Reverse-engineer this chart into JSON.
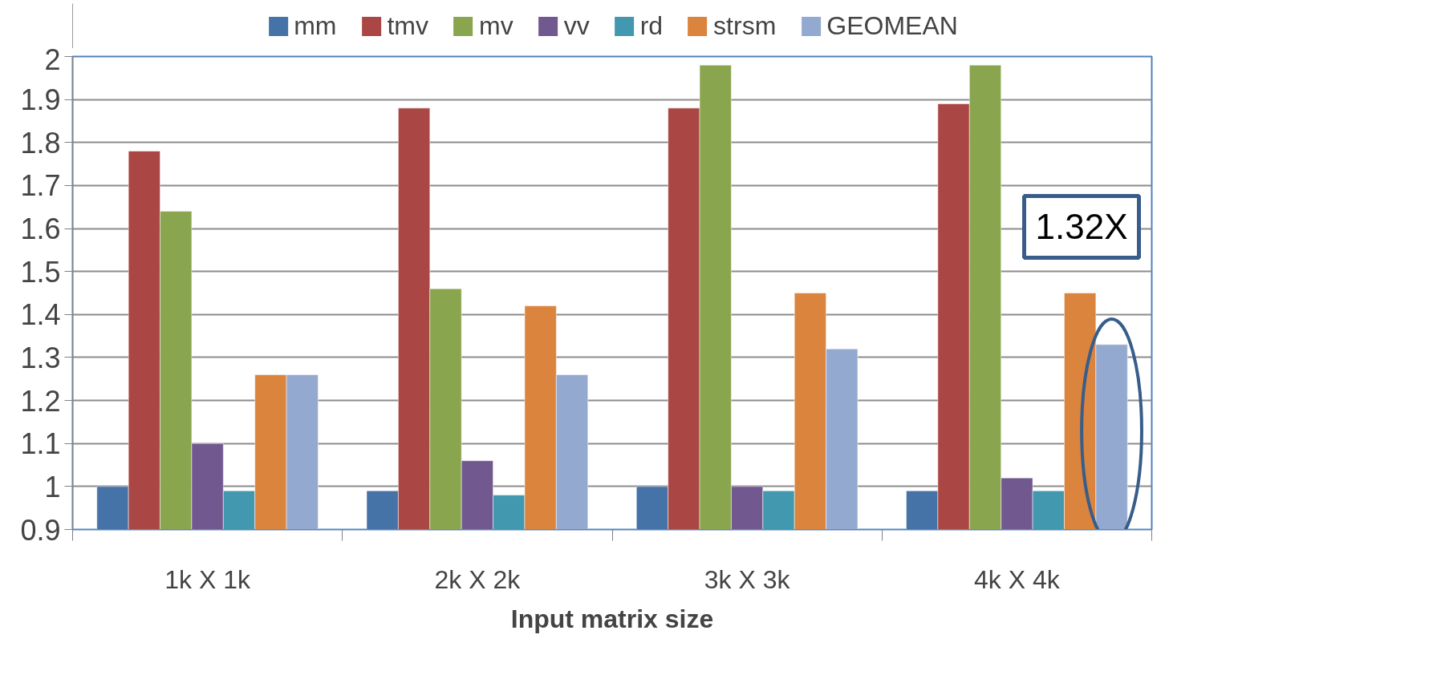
{
  "chart_data": {
    "type": "bar",
    "xlabel": "Input matrix size",
    "categories": [
      "1k X 1k",
      "2k X 2k",
      "3k X 3k",
      "4k X 4k"
    ],
    "series": [
      {
        "name": "mm",
        "color": "#4572a7",
        "values": [
          1.0,
          0.99,
          1.0,
          0.99
        ]
      },
      {
        "name": "tmv",
        "color": "#aa4643",
        "values": [
          1.78,
          1.88,
          1.88,
          1.89
        ]
      },
      {
        "name": "mv",
        "color": "#89a54e",
        "values": [
          1.64,
          1.46,
          1.98,
          1.98
        ]
      },
      {
        "name": "vv",
        "color": "#71588f",
        "values": [
          1.1,
          1.06,
          1.0,
          1.02
        ]
      },
      {
        "name": "rd",
        "color": "#4198af",
        "values": [
          0.99,
          0.98,
          0.99,
          0.99
        ]
      },
      {
        "name": "strsm",
        "color": "#db843d",
        "values": [
          1.26,
          1.42,
          1.45,
          1.45
        ]
      },
      {
        "name": "GEOMEAN",
        "color": "#93a9cf",
        "values": [
          1.26,
          1.26,
          1.32,
          1.33
        ]
      }
    ],
    "ylim": [
      0.9,
      2
    ],
    "yticks": [
      0.9,
      1,
      1.1,
      1.2,
      1.3,
      1.4,
      1.5,
      1.6,
      1.7,
      1.8,
      1.9,
      2
    ],
    "grid": "y",
    "legend": "top",
    "annotations": [
      "1.32X"
    ]
  }
}
